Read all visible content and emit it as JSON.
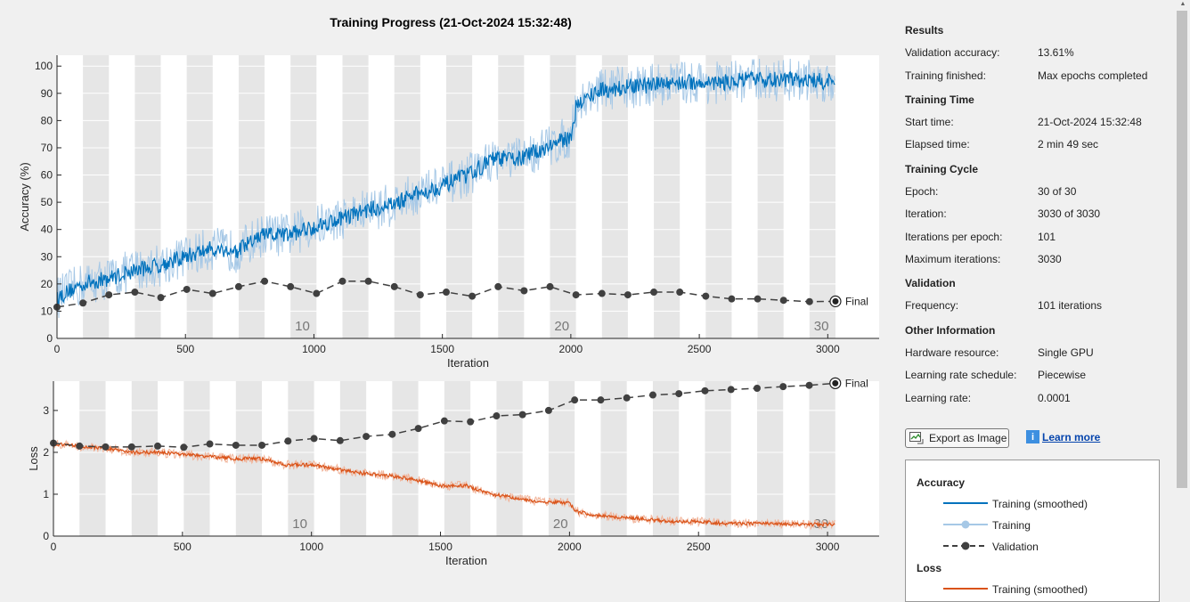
{
  "title": "Training Progress (21-Oct-2024 15:32:48)",
  "colors": {
    "train_acc_smooth": "#0072bd",
    "train_acc": "#a6c8e6",
    "train_loss_smooth": "#d95319",
    "train_loss": "#f1b49a",
    "validation": "#404040",
    "epoch_band": "#e6e6e6"
  },
  "chart_data": [
    {
      "type": "line",
      "name": "accuracy",
      "xlabel": "Iteration",
      "ylabel": "Accuracy (%)",
      "xlim": [
        0,
        3200
      ],
      "ylim": [
        0,
        104
      ],
      "xticks": [
        "0",
        "500",
        "1000",
        "1500",
        "2000",
        "2500",
        "3000"
      ],
      "yticks": [
        "0",
        "10",
        "20",
        "30",
        "40",
        "50",
        "60",
        "70",
        "80",
        "90",
        "100"
      ],
      "epoch_labels": [
        "10",
        "20",
        "30"
      ],
      "final_label": "Final",
      "training_smoothed": {
        "x": [
          0,
          100,
          200,
          300,
          400,
          500,
          600,
          700,
          800,
          900,
          1000,
          1100,
          1200,
          1300,
          1400,
          1500,
          1600,
          1700,
          1800,
          1900,
          2000,
          2020,
          2100,
          2200,
          2300,
          2400,
          2500,
          2600,
          2700,
          2800,
          2900,
          3030
        ],
        "y": [
          15,
          20,
          22,
          25,
          27,
          30,
          33,
          32,
          38,
          38,
          41,
          44,
          47,
          49,
          53,
          56,
          60,
          66,
          66,
          70,
          74,
          85,
          91,
          92,
          93,
          94,
          94,
          94,
          95,
          95,
          95,
          94
        ]
      },
      "validation": {
        "x": [
          0,
          101,
          202,
          303,
          404,
          505,
          606,
          707,
          808,
          909,
          1010,
          1111,
          1212,
          1313,
          1414,
          1515,
          1616,
          1717,
          1818,
          1919,
          2020,
          2121,
          2222,
          2323,
          2424,
          2525,
          2626,
          2727,
          2828,
          2929,
          3030
        ],
        "y": [
          11.5,
          13,
          16,
          17,
          15,
          18,
          16.5,
          19,
          21,
          19,
          16.5,
          21,
          21,
          19,
          16,
          17,
          15.5,
          19,
          17.5,
          19,
          16,
          16.5,
          16,
          17,
          17,
          15.5,
          14.5,
          14.5,
          14,
          13.5,
          13.61
        ]
      }
    },
    {
      "type": "line",
      "name": "loss",
      "xlabel": "Iteration",
      "ylabel": "Loss",
      "xlim": [
        0,
        3200
      ],
      "ylim": [
        0,
        3.7
      ],
      "xticks": [
        "0",
        "500",
        "1000",
        "1500",
        "2000",
        "2500",
        "3000"
      ],
      "yticks": [
        "0",
        "1",
        "2",
        "3"
      ],
      "epoch_labels": [
        "10",
        "20",
        "30"
      ],
      "final_label": "Final",
      "training_smoothed": {
        "x": [
          0,
          100,
          200,
          300,
          400,
          500,
          600,
          700,
          800,
          900,
          1000,
          1100,
          1200,
          1300,
          1400,
          1500,
          1600,
          1700,
          1800,
          1900,
          2000,
          2020,
          2100,
          2200,
          2300,
          2400,
          2500,
          2600,
          2700,
          2800,
          2900,
          3030
        ],
        "y": [
          2.2,
          2.15,
          2.1,
          2.0,
          2.0,
          1.95,
          1.9,
          1.85,
          1.85,
          1.7,
          1.7,
          1.6,
          1.5,
          1.45,
          1.35,
          1.2,
          1.2,
          1.0,
          0.9,
          0.8,
          0.8,
          0.6,
          0.5,
          0.45,
          0.4,
          0.35,
          0.35,
          0.3,
          0.3,
          0.3,
          0.28,
          0.28
        ]
      },
      "validation": {
        "x": [
          0,
          101,
          202,
          303,
          404,
          505,
          606,
          707,
          808,
          909,
          1010,
          1111,
          1212,
          1313,
          1414,
          1515,
          1616,
          1717,
          1818,
          1919,
          2020,
          2121,
          2222,
          2323,
          2424,
          2525,
          2626,
          2727,
          2828,
          2929,
          3030
        ],
        "y": [
          2.22,
          2.15,
          2.13,
          2.13,
          2.15,
          2.12,
          2.2,
          2.17,
          2.17,
          2.27,
          2.33,
          2.28,
          2.38,
          2.43,
          2.57,
          2.75,
          2.73,
          2.87,
          2.9,
          3.0,
          3.25,
          3.25,
          3.3,
          3.37,
          3.4,
          3.47,
          3.5,
          3.53,
          3.57,
          3.6,
          3.65
        ]
      }
    }
  ],
  "panel": {
    "results_title": "Results",
    "validation_accuracy_label": "Validation accuracy:",
    "validation_accuracy_value": "13.61%",
    "training_finished_label": "Training finished:",
    "training_finished_value": "Max epochs completed",
    "training_time_title": "Training Time",
    "start_time_label": "Start time:",
    "start_time_value": "21-Oct-2024 15:32:48",
    "elapsed_time_label": "Elapsed time:",
    "elapsed_time_value": "2 min 49 sec",
    "training_cycle_title": "Training Cycle",
    "epoch_label": "Epoch:",
    "epoch_value": "30 of 30",
    "iteration_label": "Iteration:",
    "iteration_value": "3030 of 3030",
    "iter_per_epoch_label": "Iterations per epoch:",
    "iter_per_epoch_value": "101",
    "max_iter_label": "Maximum iterations:",
    "max_iter_value": "3030",
    "validation_title": "Validation",
    "frequency_label": "Frequency:",
    "frequency_value": "101 iterations",
    "other_title": "Other Information",
    "hardware_label": "Hardware resource:",
    "hardware_value": "Single GPU",
    "lr_schedule_label": "Learning rate schedule:",
    "lr_schedule_value": "Piecewise",
    "lr_label": "Learning rate:",
    "lr_value": "0.0001",
    "export_label": "Export as Image",
    "learn_more_label": "Learn more"
  },
  "legend": {
    "accuracy_title": "Accuracy",
    "acc_smoothed": "Training (smoothed)",
    "acc_training": "Training",
    "acc_validation": "Validation",
    "loss_title": "Loss",
    "loss_smoothed": "Training (smoothed)"
  }
}
